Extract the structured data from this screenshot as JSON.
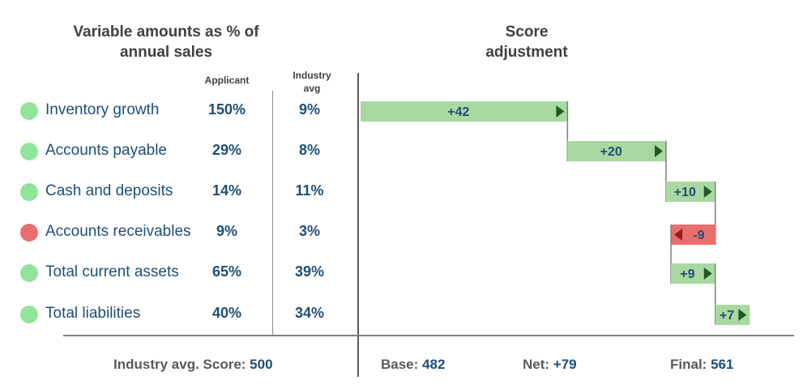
{
  "left_title": [
    "Variable amounts as % of",
    "annual sales"
  ],
  "right_title": [
    "Score",
    "adjustment"
  ],
  "col_applicant": "Applicant",
  "col_industry": [
    "Industry",
    "avg"
  ],
  "colors": {
    "positive": "#a9d9a0",
    "positive_dot": "#90e59a",
    "negative": "#e96e6e",
    "negative_dot": "#e96e6e",
    "arrow_pos": "#1e5a28",
    "arrow_neg": "#9b1c1c",
    "text": "#1f4e79",
    "connector": "#7f7f7f"
  },
  "rows": [
    {
      "label": "Inventory growth",
      "applicant": "150%",
      "industry": "9%",
      "status": "positive"
    },
    {
      "label": "Accounts payable",
      "applicant": "29%",
      "industry": "8%",
      "status": "positive"
    },
    {
      "label": "Cash and deposits",
      "applicant": "14%",
      "industry": "11%",
      "status": "positive"
    },
    {
      "label": "Accounts receivables",
      "applicant": "9%",
      "industry": "3%",
      "status": "negative"
    },
    {
      "label": "Total current assets",
      "applicant": "65%",
      "industry": "39%",
      "status": "positive"
    },
    {
      "label": "Total liabilities",
      "applicant": "40%",
      "industry": "34%",
      "status": "positive"
    }
  ],
  "footer": {
    "industry_label": "Industry avg. Score:",
    "industry_value": "500",
    "base_label": "Base:",
    "base_value": "482",
    "net_label": "Net:",
    "net_value": "+79",
    "final_label": "Final:",
    "final_value": "561"
  },
  "chart_data": {
    "type": "bar",
    "subtype": "waterfall",
    "title": "Score adjustment",
    "categories": [
      "Inventory growth",
      "Accounts payable",
      "Cash and deposits",
      "Accounts receivables",
      "Total current assets",
      "Total liabilities"
    ],
    "base": 482,
    "values": [
      42,
      20,
      10,
      -9,
      9,
      7
    ],
    "data_labels": [
      "+42",
      "+20",
      "+10",
      "-9",
      "+9",
      "+7"
    ],
    "final": 561
  }
}
